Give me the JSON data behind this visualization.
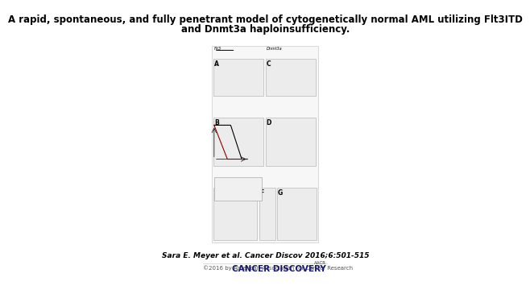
{
  "title_line1": "A rapid, spontaneous, and fully penetrant model of cytogenetically normal AML utilizing Flt3ITD",
  "title_line2": "and Dnmt3a haploinsufficiency.",
  "citation": "Sara E. Meyer et al. Cancer Discov 2016;6:501-515",
  "footer_left": "©2016 by American Association for Cancer Research",
  "footer_right": "CANCER DISCOVERY",
  "footer_right_small": "AACR",
  "bg_color": "#ffffff",
  "title_fontsize": 8.5,
  "citation_fontsize": 6.5,
  "footer_fontsize": 5.5,
  "panel_bg": "#f0f0f0",
  "inner_bg": "#e8e8e8"
}
